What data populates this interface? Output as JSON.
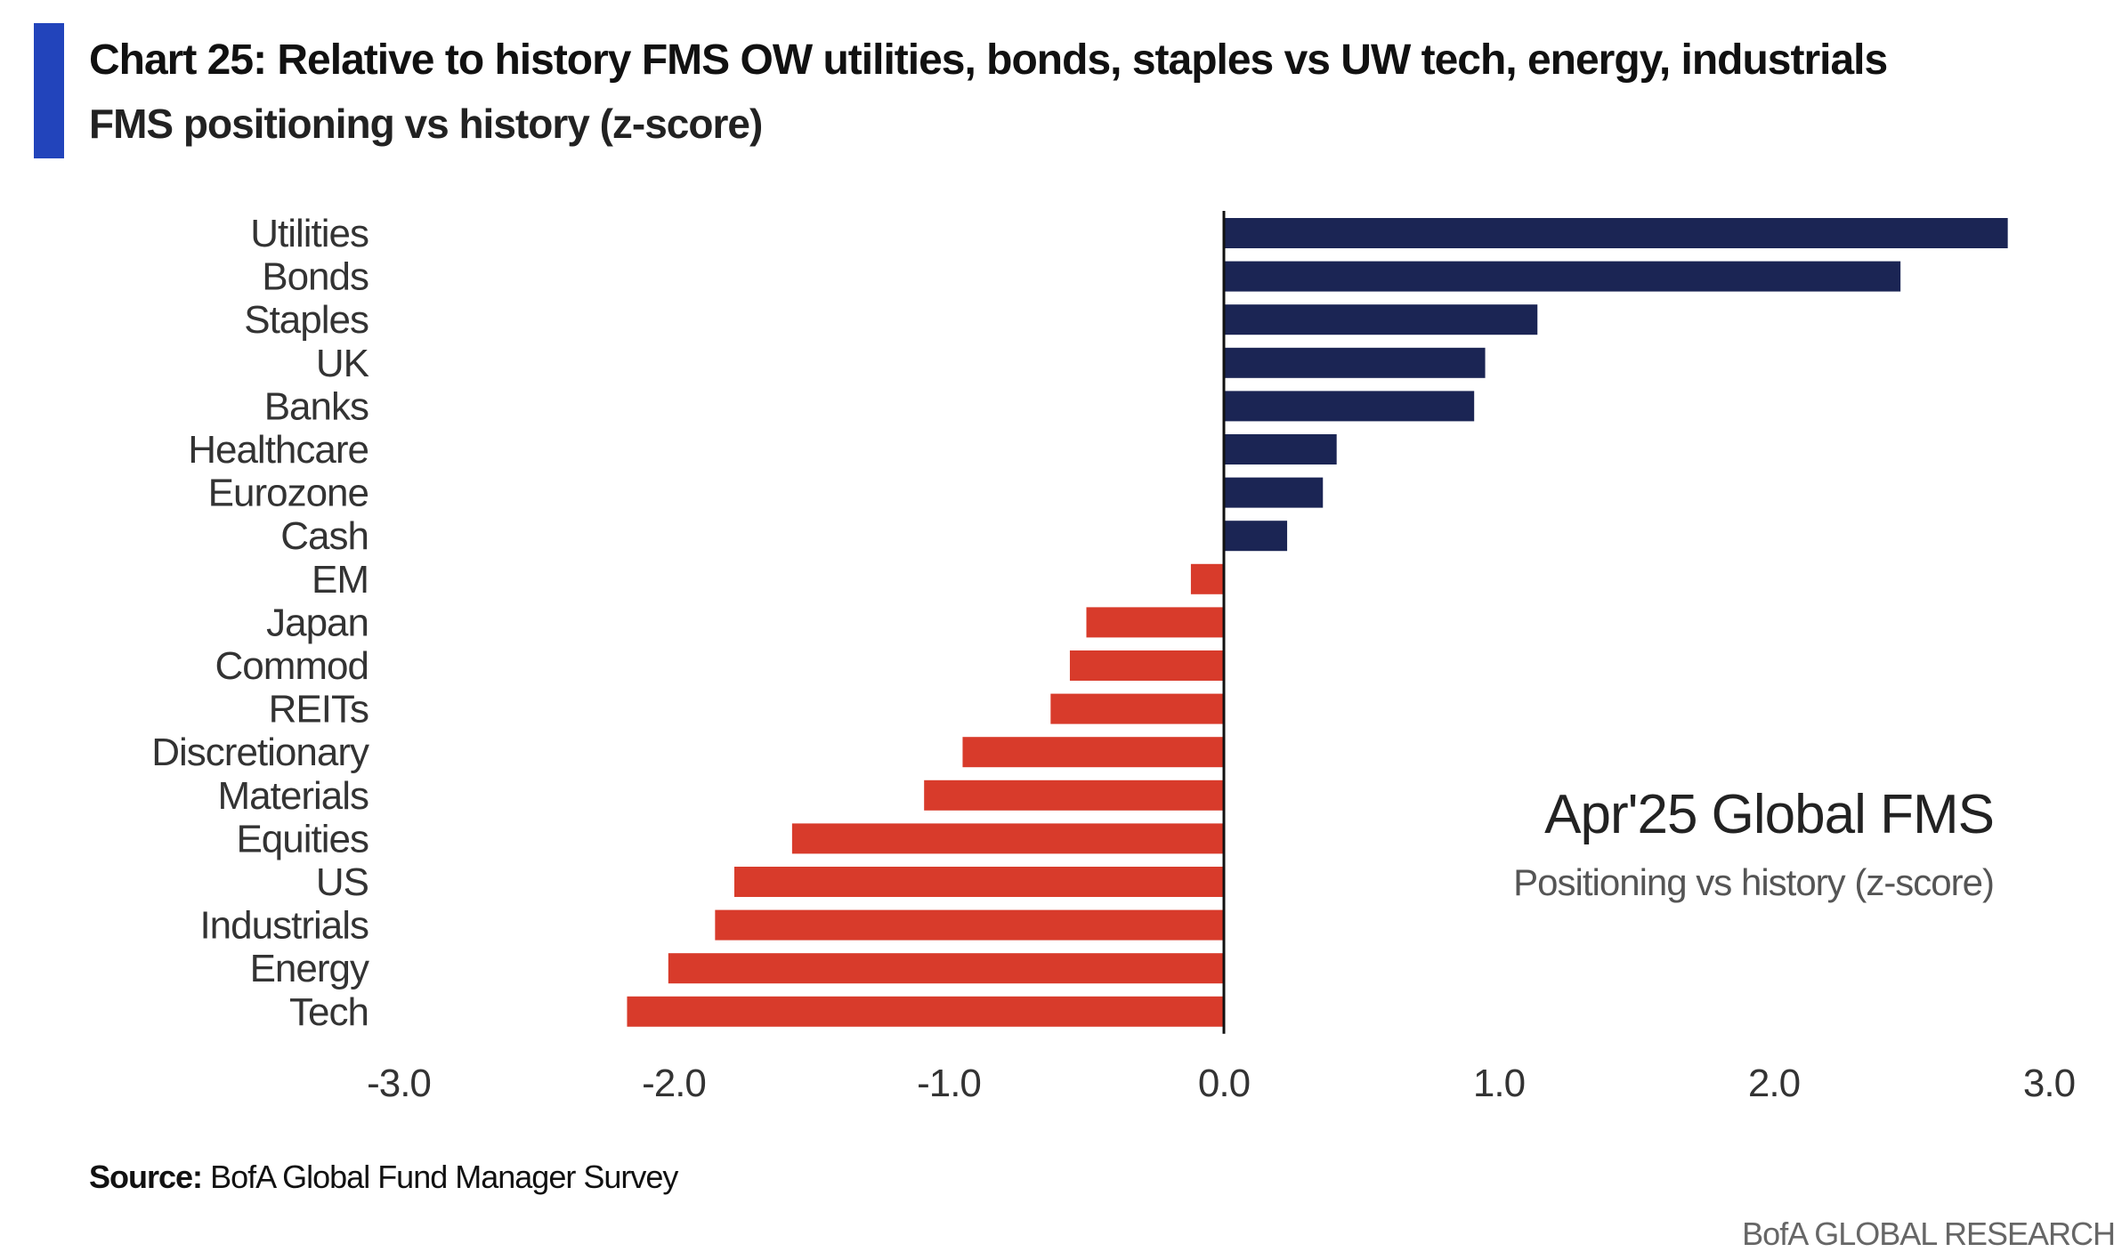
{
  "title": "Chart 25: Relative to history FMS OW utilities, bonds, staples vs UW tech, energy, industrials",
  "subtitle": "FMS positioning vs history (z-score)",
  "source_label": "Source:",
  "source_text": "BofA Global Fund Manager Survey",
  "brand": "BofA GLOBAL RESEARCH",
  "colors": {
    "accent": "#2244bb",
    "positive": "#1b2554",
    "negative": "#d83b2b",
    "axis": "#111111",
    "text": "#333333"
  },
  "chart_data": {
    "type": "bar",
    "orientation": "horizontal",
    "categories": [
      "Utilities",
      "Bonds",
      "Staples",
      "UK",
      "Banks",
      "Healthcare",
      "Eurozone",
      "Cash",
      "EM",
      "Japan",
      "Commod",
      "REITs",
      "Discretionary",
      "Materials",
      "Equities",
      "US",
      "Industrials",
      "Energy",
      "Tech"
    ],
    "values": [
      2.85,
      2.46,
      1.14,
      0.95,
      0.91,
      0.41,
      0.36,
      0.23,
      -0.12,
      -0.5,
      -0.56,
      -0.63,
      -0.95,
      -1.09,
      -1.57,
      -1.78,
      -1.85,
      -2.02,
      -2.17
    ],
    "xlim": [
      -3.0,
      3.0
    ],
    "xticks": [
      "-3.0",
      "-2.0",
      "-1.0",
      "0.0",
      "1.0",
      "2.0",
      "3.0"
    ],
    "annotation": {
      "title": "Apr'25 Global FMS",
      "subtitle": "Positioning vs history (z-score)"
    },
    "grid": false,
    "legend": "none"
  }
}
